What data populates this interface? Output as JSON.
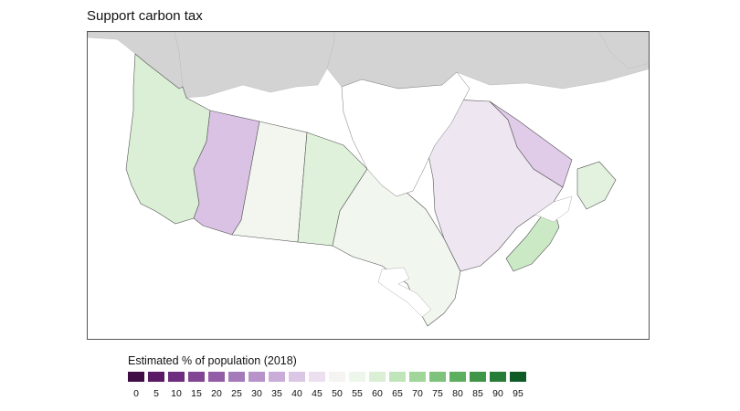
{
  "title": "Support carbon tax",
  "legend": {
    "title": "Estimated % of population (2018)",
    "ticks": [
      "0",
      "5",
      "10",
      "15",
      "20",
      "25",
      "30",
      "35",
      "40",
      "45",
      "50",
      "55",
      "60",
      "65",
      "70",
      "75",
      "80",
      "85",
      "90",
      "95"
    ],
    "colors": [
      "#3f0c45",
      "#5b1a66",
      "#6e2d7e",
      "#814593",
      "#935ca6",
      "#a57aba",
      "#b793c9",
      "#c9acd8",
      "#dcc6e5",
      "#ece0f0",
      "#f6f3f3",
      "#edf6ea",
      "#dbefd6",
      "#c0e5bb",
      "#a0d69a",
      "#7fc27b",
      "#5eae5f",
      "#3f9548",
      "#257d37",
      "#0f5b25"
    ]
  },
  "map": {
    "non_canada_color": "#d3d3d3",
    "regions": [
      {
        "name": "British Columbia",
        "color": "#dbefd6"
      },
      {
        "name": "Alberta",
        "color": "#d9c2e3"
      },
      {
        "name": "Saskatchewan",
        "color": "#f2f6ef"
      },
      {
        "name": "Manitoba",
        "color": "#dff1db"
      },
      {
        "name": "Ontario",
        "color": "#f1f6ef"
      },
      {
        "name": "Quebec",
        "color": "#eee6f1"
      },
      {
        "name": "Labrador",
        "color": "#e0cbe8"
      },
      {
        "name": "Maritimes",
        "color": "#cbe9c5"
      },
      {
        "name": "Newfoundland",
        "color": "#e2f2de"
      }
    ]
  }
}
